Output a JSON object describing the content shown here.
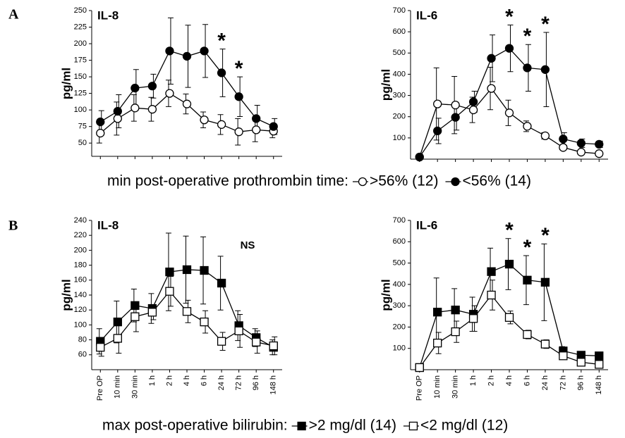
{
  "chart_data": [
    {
      "type": "line",
      "panel_label": "A",
      "title": "IL-8",
      "y_label": "pg/ml",
      "categories": [
        null,
        null,
        null,
        null,
        null,
        null,
        null,
        null,
        null,
        null,
        null
      ],
      "ylim": [
        30,
        250
      ],
      "yticks": [
        50,
        75,
        100,
        125,
        150,
        175,
        200,
        225,
        250
      ],
      "significance": [
        null,
        null,
        null,
        null,
        null,
        null,
        null,
        "*",
        "*",
        null,
        null
      ],
      "series": [
        {
          "marker": "circle",
          "color": "#000000",
          "fill": "#ffffff",
          "values": [
            65,
            87,
            103,
            101,
            125,
            109,
            85,
            78,
            67,
            70,
            68
          ],
          "errors": [
            15,
            25,
            20,
            18,
            20,
            15,
            12,
            15,
            20,
            18,
            10
          ]
        },
        {
          "marker": "circle",
          "color": "#000000",
          "fill": "#000000",
          "values": [
            82,
            98,
            133,
            136,
            189,
            181,
            189,
            156,
            120,
            87,
            75
          ],
          "errors": [
            17,
            25,
            28,
            18,
            50,
            47,
            40,
            36,
            30,
            20,
            12
          ]
        }
      ]
    },
    {
      "type": "line",
      "title": "IL-6",
      "y_label": "pg/ml",
      "categories": [
        null,
        null,
        null,
        null,
        null,
        null,
        null,
        null,
        null,
        null,
        null
      ],
      "ylim": [
        0,
        700
      ],
      "yticks": [
        100,
        200,
        300,
        400,
        500,
        600,
        700
      ],
      "significance": [
        null,
        null,
        null,
        null,
        null,
        "*",
        "*",
        "*",
        null,
        null,
        null
      ],
      "legend_title": "min post-operative prothrombin time:",
      "series": [
        {
          "name": ">56% (12)",
          "marker": "circle",
          "color": "#000000",
          "fill": "#ffffff",
          "values": [
            10,
            260,
            255,
            232,
            333,
            218,
            155,
            110,
            55,
            33,
            26
          ],
          "errors": [
            5,
            170,
            135,
            60,
            100,
            60,
            25,
            15,
            10,
            8,
            8
          ]
        },
        {
          "name": "<56% (14)",
          "marker": "circle",
          "color": "#000000",
          "fill": "#000000",
          "values": [
            10,
            133,
            197,
            270,
            475,
            522,
            430,
            422,
            95,
            75,
            70
          ],
          "errors": [
            5,
            60,
            60,
            50,
            110,
            110,
            110,
            175,
            30,
            20,
            15
          ]
        }
      ]
    },
    {
      "type": "line",
      "panel_label": "B",
      "title": "IL-8",
      "y_label": "pg/ml",
      "annotation": "NS",
      "categories": [
        "Pre OP",
        "10 min",
        "30 min",
        "1 h",
        "2 h",
        "4 h",
        "6 h",
        "24 h",
        "72 h",
        "96 h",
        "148 h"
      ],
      "ylim": [
        40,
        240
      ],
      "yticks": [
        60,
        80,
        100,
        120,
        140,
        160,
        180,
        200,
        220,
        240
      ],
      "series": [
        {
          "marker": "square",
          "color": "#000000",
          "fill": "#000000",
          "values": [
            78,
            104,
            126,
            122,
            171,
            174,
            173,
            156,
            99,
            83,
            70
          ],
          "errors": [
            17,
            28,
            22,
            20,
            52,
            45,
            45,
            36,
            20,
            12,
            10
          ]
        },
        {
          "marker": "square",
          "color": "#000000",
          "fill": "#ffffff",
          "values": [
            70,
            82,
            111,
            117,
            145,
            118,
            104,
            78,
            92,
            77,
            72
          ],
          "errors": [
            12,
            20,
            20,
            10,
            20,
            15,
            15,
            12,
            22,
            15,
            12
          ]
        }
      ]
    },
    {
      "type": "line",
      "title": "IL-6",
      "y_label": "pg/ml",
      "categories": [
        "Pre OP",
        "10 min",
        "30 min",
        "1 h",
        "2 h",
        "4 h",
        "6 h",
        "24 h",
        "72 h",
        "96 h",
        "148 h"
      ],
      "ylim": [
        0,
        700
      ],
      "yticks": [
        100,
        200,
        300,
        400,
        500,
        600,
        700
      ],
      "significance": [
        null,
        null,
        null,
        null,
        null,
        "*",
        "*",
        "*",
        null,
        null,
        null
      ],
      "legend_title": "max post-operative bilirubin:",
      "series": [
        {
          "name": ">2 mg/dl (14)",
          "marker": "square",
          "color": "#000000",
          "fill": "#000000",
          "values": [
            10,
            270,
            280,
            260,
            460,
            495,
            420,
            410,
            88,
            68,
            65
          ],
          "errors": [
            5,
            160,
            100,
            80,
            110,
            120,
            115,
            180,
            20,
            15,
            15
          ]
        },
        {
          "name": "<2 mg/dl (12)",
          "marker": "square",
          "color": "#000000",
          "fill": "#ffffff",
          "values": [
            10,
            125,
            178,
            240,
            350,
            245,
            165,
            120,
            65,
            35,
            25
          ],
          "errors": [
            5,
            50,
            50,
            60,
            70,
            30,
            20,
            20,
            15,
            12,
            10
          ]
        }
      ]
    }
  ]
}
